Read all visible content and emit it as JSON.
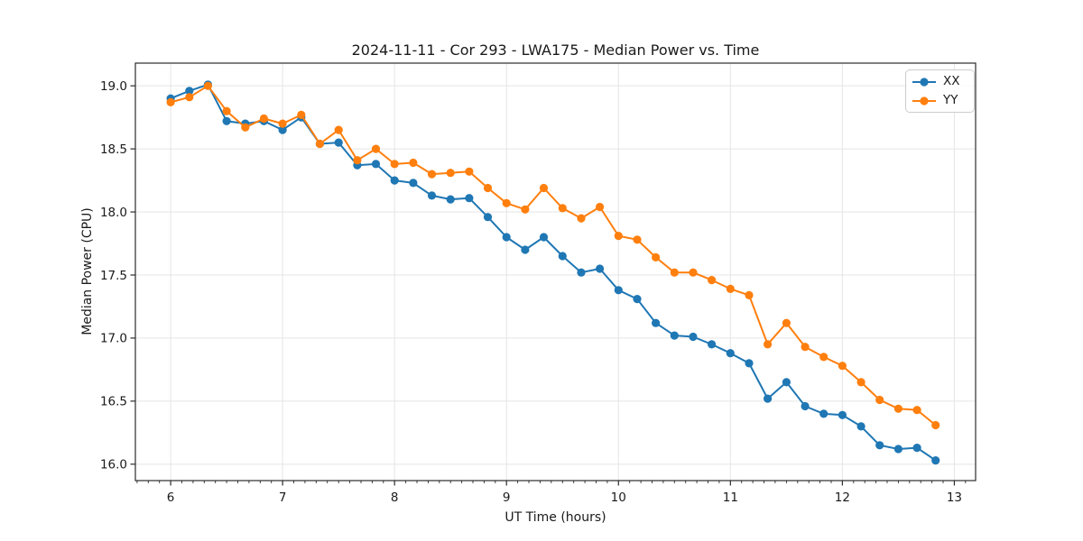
{
  "chart_data": {
    "type": "line",
    "title": "2024-11-11 - Cor 293 - LWA175 - Median Power vs. Time",
    "xlabel": "UT Time (hours)",
    "ylabel": "Median Power (CPU)",
    "xlim": [
      5.685,
      13.19
    ],
    "ylim": [
      15.87,
      19.18
    ],
    "xticks": [
      6,
      7,
      8,
      9,
      10,
      11,
      12,
      13
    ],
    "yticks": [
      16.0,
      16.5,
      17.0,
      17.5,
      18.0,
      18.5,
      19.0
    ],
    "x_minor_tick_step": 0.1,
    "grid": true,
    "grid_color": "#e5e5e5",
    "spine_color": "#2b2b2b",
    "legend_position": "upper right",
    "marker": "o",
    "x": [
      6.0,
      6.167,
      6.333,
      6.5,
      6.667,
      6.833,
      7.0,
      7.167,
      7.333,
      7.5,
      7.667,
      7.833,
      8.0,
      8.167,
      8.333,
      8.5,
      8.667,
      8.833,
      9.0,
      9.167,
      9.333,
      9.5,
      9.667,
      9.833,
      10.0,
      10.167,
      10.333,
      10.5,
      10.667,
      10.833,
      11.0,
      11.167,
      11.333,
      11.5,
      11.667,
      11.833,
      12.0,
      12.167,
      12.333,
      12.5,
      12.667,
      12.833
    ],
    "series": [
      {
        "name": "XX",
        "color": "#1f77b4",
        "values": [
          18.9,
          18.96,
          19.01,
          18.72,
          18.7,
          18.72,
          18.65,
          18.75,
          18.54,
          18.55,
          18.37,
          18.38,
          18.25,
          18.23,
          18.13,
          18.1,
          18.11,
          17.96,
          17.8,
          17.7,
          17.8,
          17.65,
          17.52,
          17.55,
          17.38,
          17.31,
          17.12,
          17.02,
          17.01,
          16.95,
          16.88,
          16.8,
          16.52,
          16.65,
          16.46,
          16.4,
          16.39,
          16.3,
          16.15,
          16.12,
          16.13,
          16.03
        ]
      },
      {
        "name": "YY",
        "color": "#ff7f0e",
        "values": [
          18.87,
          18.91,
          19.0,
          18.8,
          18.67,
          18.74,
          18.7,
          18.77,
          18.54,
          18.65,
          18.41,
          18.5,
          18.38,
          18.39,
          18.3,
          18.31,
          18.32,
          18.19,
          18.07,
          18.02,
          18.19,
          18.03,
          17.95,
          18.04,
          17.81,
          17.78,
          17.64,
          17.52,
          17.52,
          17.46,
          17.39,
          17.34,
          16.95,
          17.12,
          16.93,
          16.85,
          16.78,
          16.65,
          16.51,
          16.44,
          16.43,
          16.31
        ]
      }
    ]
  }
}
